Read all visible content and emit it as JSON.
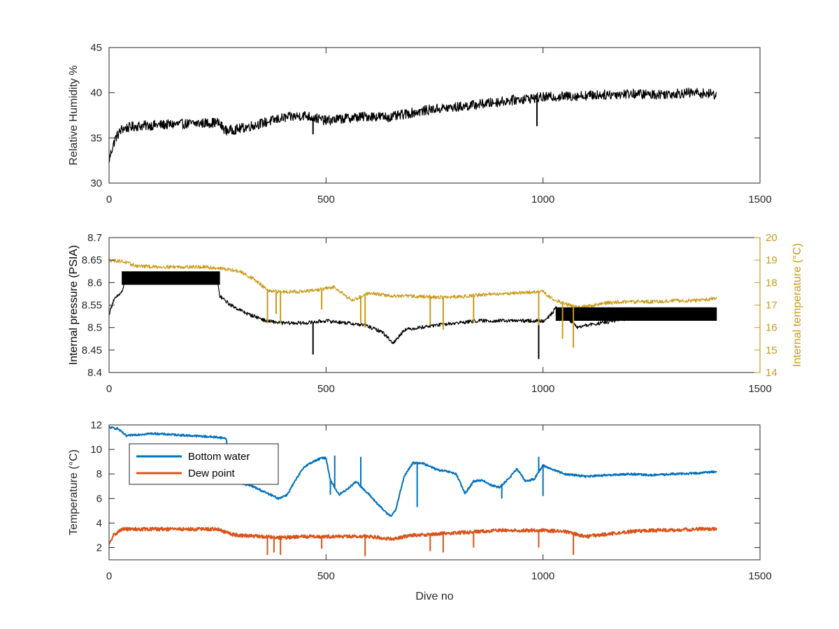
{
  "chart_data": [
    {
      "type": "line",
      "xlim": [
        0,
        1500
      ],
      "x_ticks": [
        "0",
        "500",
        "1000",
        "1500"
      ],
      "ylim": [
        30,
        45
      ],
      "y_ticks": [
        "30",
        "35",
        "40",
        "45"
      ],
      "ylabel": "Relative Humidity %",
      "grid": false,
      "series": [
        {
          "color": "#000000",
          "noise": 0.55,
          "x": [
            0,
            5,
            15,
            30,
            60,
            100,
            150,
            200,
            250,
            270,
            300,
            350,
            400,
            450,
            500,
            550,
            600,
            650,
            700,
            750,
            800,
            850,
            900,
            950,
            1000,
            1050,
            1100,
            1150,
            1200,
            1250,
            1300,
            1350,
            1400
          ],
          "y": [
            32.5,
            33.5,
            35.0,
            36.0,
            36.3,
            36.4,
            36.5,
            36.6,
            36.7,
            35.8,
            36.0,
            36.6,
            37.2,
            37.5,
            36.9,
            37.2,
            37.4,
            37.3,
            37.8,
            38.2,
            38.4,
            38.7,
            39.0,
            39.3,
            39.5,
            39.6,
            39.7,
            39.8,
            39.9,
            39.8,
            39.9,
            40.0,
            39.8
          ]
        }
      ],
      "spikes": [
        {
          "series": 0,
          "x": 470,
          "y": 35.4
        },
        {
          "series": 0,
          "x": 986,
          "y": 36.3
        }
      ]
    },
    {
      "type": "line",
      "xlim": [
        0,
        1500
      ],
      "x_ticks": [
        "0",
        "500",
        "1000",
        "1500"
      ],
      "ylim": [
        8.4,
        8.7
      ],
      "y_ticks": [
        "8.4",
        "8.45",
        "8.5",
        "8.55",
        "8.6",
        "8.65",
        "8.7"
      ],
      "ylabel": "Internal pressure (PSIA)",
      "y2lim": [
        14,
        20
      ],
      "y2_ticks": [
        "14",
        "15",
        "16",
        "17",
        "18",
        "19",
        "20"
      ],
      "y2label": "Internal temperature (°C)",
      "y2color": "#c99a19",
      "grid": false,
      "series": [
        {
          "color": "#000000",
          "noise": 0.004,
          "x": [
            0,
            10,
            30,
            40,
            100,
            200,
            250,
            255,
            280,
            320,
            350,
            360,
            400,
            450,
            500,
            550,
            590,
            630,
            655,
            680,
            750,
            850,
            950,
            1000,
            1020,
            1030,
            1080,
            1100,
            1200,
            1300,
            1400
          ],
          "y": [
            8.53,
            8.56,
            8.58,
            8.61,
            8.61,
            8.61,
            8.6,
            8.57,
            8.55,
            8.53,
            8.52,
            8.515,
            8.51,
            8.51,
            8.515,
            8.51,
            8.505,
            8.49,
            8.465,
            8.495,
            8.505,
            8.515,
            8.515,
            8.515,
            8.53,
            8.545,
            8.5,
            8.505,
            8.52,
            8.525,
            8.53
          ]
        },
        {
          "color": "#c99a19",
          "axis": "right",
          "noise": 0.08,
          "x": [
            0,
            30,
            60,
            100,
            200,
            250,
            300,
            330,
            350,
            370,
            400,
            450,
            490,
            520,
            560,
            600,
            650,
            700,
            750,
            800,
            850,
            900,
            950,
            1000,
            1020,
            1050,
            1080,
            1100,
            1150,
            1200,
            1250,
            1300,
            1350,
            1400
          ],
          "y": [
            19.0,
            18.95,
            18.75,
            18.7,
            18.7,
            18.65,
            18.5,
            18.2,
            17.9,
            17.6,
            17.6,
            17.6,
            17.7,
            17.8,
            17.2,
            17.55,
            17.4,
            17.4,
            17.35,
            17.35,
            17.45,
            17.5,
            17.55,
            17.6,
            17.3,
            17.05,
            16.9,
            16.95,
            17.1,
            17.15,
            17.15,
            17.2,
            17.2,
            17.3
          ]
        }
      ],
      "bands": [
        {
          "series": 0,
          "x_from": 30,
          "x_to": 255,
          "y_low": 8.595,
          "y_high": 8.625
        },
        {
          "series": 0,
          "x_from": 1030,
          "x_to": 1400,
          "y_low": 8.515,
          "y_high": 8.545
        }
      ],
      "spikes": [
        {
          "series": 0,
          "x": 470,
          "y": 8.44
        },
        {
          "series": 0,
          "x": 990,
          "y": 8.43
        },
        {
          "series": 1,
          "x": 365,
          "y": 16.2
        },
        {
          "series": 1,
          "x": 385,
          "y": 16.6
        },
        {
          "series": 1,
          "x": 395,
          "y": 16.2
        },
        {
          "series": 1,
          "x": 490,
          "y": 16.8
        },
        {
          "series": 1,
          "x": 580,
          "y": 16.2
        },
        {
          "series": 1,
          "x": 590,
          "y": 16.0
        },
        {
          "series": 1,
          "x": 740,
          "y": 16.1
        },
        {
          "series": 1,
          "x": 770,
          "y": 15.9
        },
        {
          "series": 1,
          "x": 840,
          "y": 16.2
        },
        {
          "series": 1,
          "x": 990,
          "y": 16.1
        },
        {
          "series": 1,
          "x": 1045,
          "y": 15.5
        },
        {
          "series": 1,
          "x": 1070,
          "y": 15.1
        }
      ]
    },
    {
      "type": "line",
      "xlim": [
        0,
        1500
      ],
      "x_ticks": [
        "0",
        "500",
        "1000",
        "1500"
      ],
      "ylim": [
        1,
        12
      ],
      "y_ticks": [
        "2",
        "4",
        "6",
        "8",
        "10",
        "12"
      ],
      "xlabel": "Dive no",
      "ylabel": "Temperature (°C)",
      "legend": "top-left",
      "grid": false,
      "series": [
        {
          "name": "Bottom water",
          "color": "#0072bd",
          "noise": 0.08,
          "x": [
            0,
            20,
            40,
            60,
            100,
            150,
            200,
            250,
            270,
            280,
            300,
            330,
            360,
            390,
            410,
            430,
            450,
            470,
            490,
            500,
            510,
            530,
            550,
            570,
            590,
            600,
            620,
            640,
            650,
            660,
            680,
            700,
            720,
            740,
            760,
            780,
            800,
            820,
            840,
            860,
            880,
            900,
            920,
            940,
            960,
            980,
            1000,
            1020,
            1050,
            1100,
            1150,
            1200,
            1250,
            1300,
            1350,
            1400
          ],
          "y": [
            11.8,
            11.7,
            11.1,
            11.2,
            11.3,
            11.2,
            11.1,
            11.0,
            10.9,
            7.3,
            7.3,
            7.0,
            6.5,
            6.0,
            6.3,
            7.5,
            8.6,
            9.0,
            9.3,
            9.3,
            7.5,
            6.3,
            6.8,
            7.4,
            6.6,
            6.3,
            5.5,
            4.8,
            4.6,
            5.0,
            7.8,
            8.9,
            8.9,
            8.6,
            8.3,
            8.2,
            8.0,
            6.4,
            7.4,
            7.5,
            7.1,
            6.9,
            7.6,
            8.4,
            7.4,
            7.6,
            8.7,
            8.4,
            8.0,
            7.8,
            7.9,
            8.0,
            7.9,
            8.0,
            8.05,
            8.2
          ]
        },
        {
          "name": "Dew point",
          "color": "#d95319",
          "noise": 0.14,
          "x": [
            0,
            10,
            30,
            60,
            100,
            150,
            200,
            250,
            280,
            300,
            350,
            400,
            450,
            500,
            550,
            600,
            650,
            700,
            750,
            800,
            850,
            900,
            950,
            1000,
            1050,
            1100,
            1150,
            1200,
            1250,
            1300,
            1350,
            1400
          ],
          "y": [
            2.2,
            3.0,
            3.5,
            3.5,
            3.5,
            3.5,
            3.5,
            3.5,
            3.1,
            3.0,
            2.9,
            2.8,
            2.9,
            2.9,
            2.9,
            2.9,
            2.7,
            3.0,
            3.1,
            3.2,
            3.3,
            3.4,
            3.4,
            3.4,
            3.3,
            2.9,
            3.1,
            3.3,
            3.4,
            3.4,
            3.5,
            3.5
          ]
        }
      ],
      "spikes": [
        {
          "series": 0,
          "x": 510,
          "y": 6.3
        },
        {
          "series": 0,
          "x": 520,
          "y": 9.5
        },
        {
          "series": 0,
          "x": 580,
          "y": 9.4
        },
        {
          "series": 0,
          "x": 710,
          "y": 5.3
        },
        {
          "series": 0,
          "x": 905,
          "y": 6.0
        },
        {
          "series": 0,
          "x": 990,
          "y": 9.4
        },
        {
          "series": 0,
          "x": 1000,
          "y": 6.2
        },
        {
          "series": 1,
          "x": 365,
          "y": 1.4
        },
        {
          "series": 1,
          "x": 380,
          "y": 1.6
        },
        {
          "series": 1,
          "x": 395,
          "y": 1.4
        },
        {
          "series": 1,
          "x": 490,
          "y": 1.9
        },
        {
          "series": 1,
          "x": 590,
          "y": 1.3
        },
        {
          "series": 1,
          "x": 740,
          "y": 1.7
        },
        {
          "series": 1,
          "x": 770,
          "y": 1.6
        },
        {
          "series": 1,
          "x": 840,
          "y": 2.0
        },
        {
          "series": 1,
          "x": 990,
          "y": 2.0
        },
        {
          "series": 1,
          "x": 1070,
          "y": 1.4
        }
      ]
    }
  ]
}
